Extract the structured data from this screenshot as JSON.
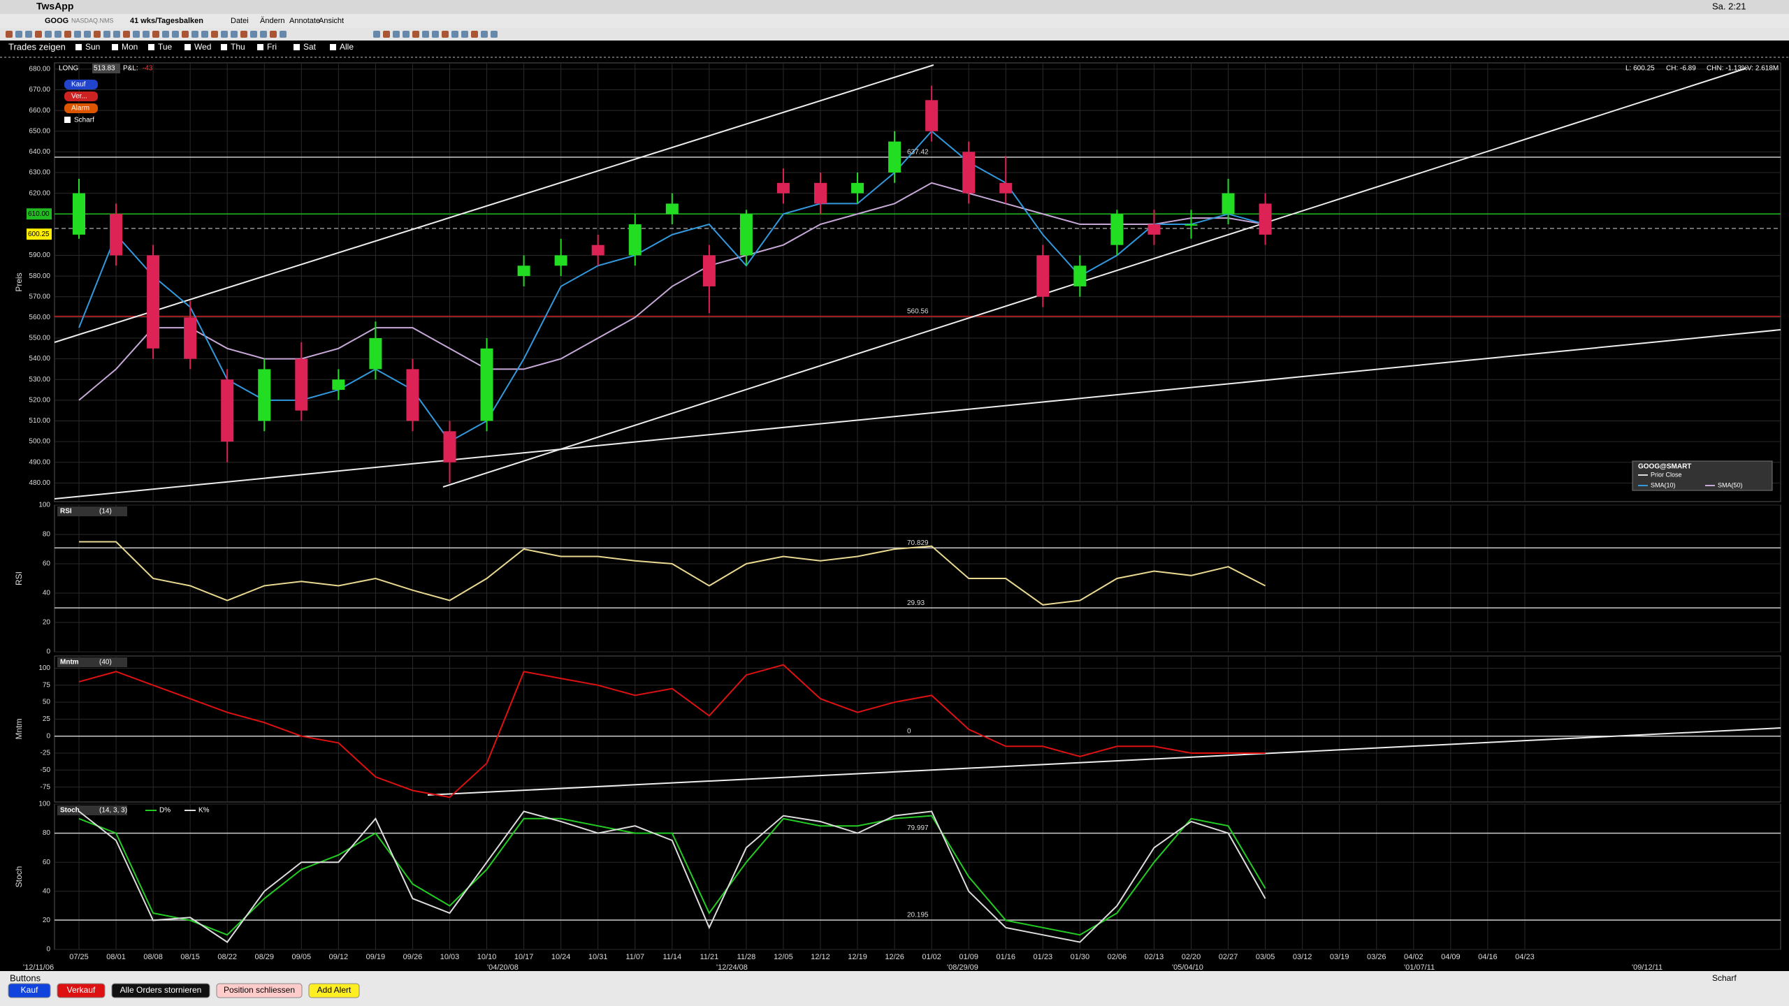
{
  "menubar": {
    "app": "TwsApp",
    "clock": "Sa. 2:21"
  },
  "toolbar": {
    "symbol": "GOOG",
    "exchange": "NASDAQ.NMS",
    "period": "41 wks/Tagesbalken",
    "menus": [
      "Datei",
      "Ändern",
      "Annotate",
      "Ansicht"
    ]
  },
  "trades_bar": {
    "label": "Trades zeigen",
    "days": [
      "Sun",
      "Mon",
      "Tue",
      "Wed",
      "Thu",
      "Fri",
      "Sat",
      "Alle"
    ]
  },
  "header": {
    "position": "LONG",
    "pos_value": "513.83",
    "pnl_label": "P&L:",
    "pnl": "-43",
    "quote": [
      "L: 600.25",
      "CH: -6.89",
      "CHN: -1.13%",
      "V: 2.618M"
    ]
  },
  "order_buttons": [
    "Kauf",
    "Ver...",
    "Alarm",
    "Scharf"
  ],
  "dates": {
    "weeks": [
      "07/25",
      "08/01",
      "08/08",
      "08/15",
      "08/22",
      "08/29",
      "09/05",
      "09/12",
      "09/19",
      "09/26",
      "10/03",
      "10/10",
      "10/17",
      "10/24",
      "10/31",
      "11/07",
      "11/14",
      "11/21",
      "11/28",
      "12/05",
      "12/12",
      "12/19",
      "12/26",
      "01/02",
      "01/09",
      "01/16",
      "01/23",
      "01/30",
      "02/06",
      "02/13",
      "02/20",
      "02/27",
      "03/05",
      "03/12",
      "03/19",
      "03/26",
      "04/02",
      "04/09",
      "04/16",
      "04/23"
    ],
    "eras": [
      "'12/11/06",
      "'04/20/08",
      "'12/24/08",
      "'08/29/09",
      "'05/04/10",
      "'01/07/11",
      "'09/12/11"
    ]
  },
  "price": {
    "axis_label": "Preis",
    "ylim": [
      471,
      683
    ],
    "yticks": [
      {
        "value": 680,
        "label": "680.00"
      },
      {
        "value": 670,
        "label": "670.00"
      },
      {
        "value": 660,
        "label": "660.00"
      },
      {
        "value": 650,
        "label": "650.00"
      },
      {
        "value": 640,
        "label": "640.00"
      },
      {
        "value": 630,
        "label": "630.00"
      },
      {
        "value": 620,
        "label": "620.00"
      },
      {
        "value": 590,
        "label": "590.00"
      },
      {
        "value": 580,
        "label": "580.00"
      },
      {
        "value": 570,
        "label": "570.00"
      },
      {
        "value": 560,
        "label": "560.00"
      },
      {
        "value": 550,
        "label": "550.00"
      },
      {
        "value": 540,
        "label": "540.00"
      },
      {
        "value": 530,
        "label": "530.00"
      },
      {
        "value": 520,
        "label": "520.00"
      },
      {
        "value": 510,
        "label": "510.00"
      },
      {
        "value": 500,
        "label": "500.00"
      },
      {
        "value": 490,
        "label": "490.00"
      },
      {
        "value": 480,
        "label": "480.00"
      }
    ],
    "open": [
      600,
      610,
      590,
      560,
      530,
      510,
      540,
      525,
      535,
      535,
      505,
      510,
      580,
      585,
      595,
      590,
      610,
      590,
      590,
      625,
      625,
      620,
      630,
      665,
      640,
      625,
      590,
      575,
      595,
      605,
      605,
      610,
      615,
      null,
      null,
      null,
      null,
      null,
      null,
      null
    ],
    "high": [
      627,
      615,
      595,
      568,
      535,
      540,
      548,
      535,
      558,
      540,
      510,
      550,
      590,
      598,
      600,
      610,
      620,
      595,
      612,
      632,
      630,
      630,
      650,
      672,
      645,
      638,
      595,
      590,
      612,
      612,
      612,
      627,
      620,
      null,
      null,
      null,
      null,
      null,
      null,
      null
    ],
    "low": [
      598,
      585,
      540,
      535,
      490,
      505,
      510,
      520,
      530,
      505,
      480,
      505,
      575,
      580,
      585,
      585,
      605,
      562,
      585,
      615,
      610,
      615,
      625,
      645,
      615,
      615,
      565,
      570,
      590,
      595,
      598,
      605,
      595,
      null,
      null,
      null,
      null,
      null,
      null,
      null
    ],
    "close": [
      620,
      590,
      545,
      540,
      500,
      535,
      515,
      530,
      550,
      510,
      490,
      545,
      585,
      590,
      590,
      605,
      615,
      575,
      610,
      620,
      615,
      625,
      645,
      650,
      620,
      620,
      570,
      585,
      610,
      600,
      605,
      620,
      600,
      null,
      null,
      null,
      null,
      null,
      null,
      null
    ],
    "sma10": [
      555,
      600,
      580,
      565,
      530,
      520,
      520,
      525,
      535,
      525,
      500,
      510,
      540,
      575,
      585,
      590,
      600,
      605,
      585,
      610,
      615,
      615,
      630,
      650,
      635,
      625,
      600,
      580,
      590,
      605,
      605,
      610,
      605,
      null,
      null,
      null,
      null,
      null,
      null,
      null
    ],
    "sma50": [
      520,
      535,
      555,
      555,
      545,
      540,
      540,
      545,
      555,
      555,
      545,
      535,
      535,
      540,
      550,
      560,
      575,
      585,
      590,
      595,
      605,
      610,
      615,
      625,
      620,
      615,
      610,
      605,
      605,
      605,
      608,
      608,
      605,
      null,
      null,
      null,
      null,
      null,
      null,
      null
    ],
    "green_level": {
      "value": 610,
      "label": "610.00"
    },
    "prior_close": 603,
    "last_price": 600.25,
    "levels": [
      637.42,
      560.56
    ],
    "legend": {
      "title": "GOOG@SMART",
      "items": [
        "Prior Close",
        "SMA(10)",
        "SMA(50)"
      ]
    }
  },
  "rsi": {
    "name": "RSI",
    "param": "(14)",
    "axis_label": "RSI",
    "ylim": [
      0,
      100
    ],
    "yticks": [
      100,
      80,
      60,
      40,
      20,
      0
    ],
    "levels": [
      70.829,
      29.93
    ],
    "values": [
      75,
      75,
      50,
      45,
      35,
      45,
      48,
      45,
      50,
      42,
      35,
      50,
      70,
      65,
      65,
      62,
      60,
      45,
      60,
      65,
      62,
      65,
      70,
      72,
      50,
      50,
      32,
      35,
      50,
      55,
      52,
      58,
      45,
      null,
      null,
      null,
      null,
      null,
      null,
      null
    ]
  },
  "mntm": {
    "name": "Mntm",
    "param": "(40)",
    "axis_label": "Mntm",
    "ylim": [
      -97,
      118
    ],
    "yticks": [
      100,
      75,
      50,
      25,
      0,
      -25,
      -50,
      -75
    ],
    "levels": [
      0
    ],
    "values": [
      80,
      95,
      75,
      55,
      35,
      20,
      0,
      -10,
      -60,
      -80,
      -90,
      -40,
      95,
      85,
      75,
      60,
      70,
      30,
      90,
      105,
      55,
      35,
      50,
      60,
      10,
      -15,
      -15,
      -30,
      -15,
      -15,
      -25,
      -25,
      -25,
      null,
      null,
      null,
      null,
      null,
      null,
      null
    ]
  },
  "stoch": {
    "name": "Stoch",
    "param": "(14, 3, 3)",
    "axis_label": "Stoch",
    "ylim": [
      0,
      100
    ],
    "yticks": [
      100,
      80,
      60,
      40,
      20,
      0
    ],
    "levels": [
      79.997,
      20.195
    ],
    "series": [
      {
        "name": "D%",
        "color": "#22cc22",
        "values": [
          90,
          80,
          25,
          20,
          10,
          35,
          55,
          65,
          80,
          45,
          30,
          55,
          90,
          90,
          85,
          80,
          80,
          25,
          60,
          90,
          85,
          85,
          90,
          92,
          50,
          20,
          15,
          10,
          25,
          60,
          90,
          85,
          42,
          null,
          null,
          null,
          null,
          null,
          null,
          null
        ]
      },
      {
        "name": "K%",
        "color": "#dddddd",
        "values": [
          95,
          75,
          20,
          22,
          5,
          40,
          60,
          60,
          90,
          35,
          25,
          60,
          95,
          88,
          80,
          85,
          75,
          15,
          70,
          92,
          88,
          80,
          92,
          95,
          40,
          15,
          10,
          5,
          30,
          70,
          88,
          80,
          35,
          null,
          null,
          null,
          null,
          null,
          null,
          null
        ]
      }
    ]
  },
  "footer": {
    "title": "Buttons",
    "buttons": [
      "Kauf",
      "Verkauf",
      "Alle Orders stornieren",
      "Position schliessen",
      "Add Alert"
    ],
    "armed": "Scharf"
  }
}
